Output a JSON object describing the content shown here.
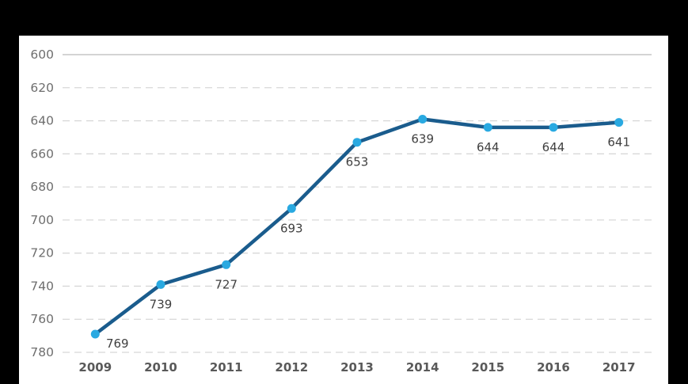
{
  "chart_data": {
    "type": "line",
    "title": "",
    "legend": "none",
    "categories": [
      "2009",
      "2010",
      "2011",
      "2012",
      "2013",
      "2014",
      "2015",
      "2016",
      "2017"
    ],
    "values": [
      769,
      739,
      727,
      693,
      653,
      639,
      644,
      644,
      641
    ],
    "data_labels": [
      "769",
      "739",
      "727",
      "693",
      "653",
      "639",
      "644",
      "644",
      "641"
    ],
    "yticks": [
      "600",
      "620",
      "640",
      "660",
      "680",
      "700",
      "720",
      "740",
      "760",
      "780"
    ],
    "ylim": [
      600,
      780
    ],
    "y_axis_reversed": true,
    "grid": {
      "horizontal": true,
      "style": "dashed",
      "top_line_style": "solid",
      "vertical": false
    },
    "colors": {
      "frame_bg": "#000000",
      "plot_bg": "#FFFFFF",
      "line": "#1A5C8D",
      "marker": "#29A9E1",
      "data_label": "#3F3F3F",
      "y_tick": "#6E6E6E",
      "x_tick": "#595959",
      "grid_solid": "#C6C6C6",
      "grid_dashed": "#D8D8D8"
    }
  }
}
